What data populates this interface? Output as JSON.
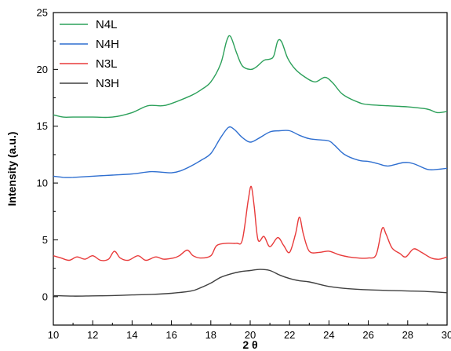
{
  "chart_data": {
    "type": "line",
    "title": "",
    "xlabel": "2 θ",
    "ylabel": "Intensity (a.u.)",
    "xlim": [
      10,
      30
    ],
    "ylim": [
      -2.5,
      25
    ],
    "x_ticks": [
      10,
      12,
      14,
      16,
      18,
      20,
      22,
      24,
      26,
      28,
      30
    ],
    "y_ticks": [
      0,
      5,
      10,
      15,
      20,
      25
    ],
    "grid": false,
    "legend_position": "top-left",
    "series": [
      {
        "name": "N4L",
        "color": "#2ca05a",
        "points": [
          [
            10,
            16.0
          ],
          [
            10.5,
            15.8
          ],
          [
            11,
            15.8
          ],
          [
            12,
            15.8
          ],
          [
            13,
            15.8
          ],
          [
            14,
            16.2
          ],
          [
            14.8,
            16.8
          ],
          [
            15.5,
            16.8
          ],
          [
            16,
            17.0
          ],
          [
            17,
            17.7
          ],
          [
            17.5,
            18.2
          ],
          [
            18,
            18.9
          ],
          [
            18.5,
            20.5
          ],
          [
            18.8,
            22.5
          ],
          [
            19,
            22.9
          ],
          [
            19.3,
            21.5
          ],
          [
            19.6,
            20.3
          ],
          [
            20,
            20.0
          ],
          [
            20.3,
            20.2
          ],
          [
            20.7,
            20.8
          ],
          [
            21,
            20.9
          ],
          [
            21.2,
            21.2
          ],
          [
            21.4,
            22.5
          ],
          [
            21.6,
            22.4
          ],
          [
            21.9,
            21.0
          ],
          [
            22.3,
            20.0
          ],
          [
            22.8,
            19.3
          ],
          [
            23.3,
            18.9
          ],
          [
            23.8,
            19.3
          ],
          [
            24.2,
            18.8
          ],
          [
            24.7,
            17.8
          ],
          [
            25.5,
            17.1
          ],
          [
            26,
            16.9
          ],
          [
            27,
            16.8
          ],
          [
            28,
            16.7
          ],
          [
            29,
            16.5
          ],
          [
            29.5,
            16.2
          ],
          [
            30,
            16.3
          ]
        ]
      },
      {
        "name": "N4H",
        "color": "#2f6fd0",
        "points": [
          [
            10,
            10.6
          ],
          [
            10.5,
            10.5
          ],
          [
            11,
            10.5
          ],
          [
            12,
            10.6
          ],
          [
            13,
            10.7
          ],
          [
            14,
            10.8
          ],
          [
            15,
            11.0
          ],
          [
            16,
            10.9
          ],
          [
            16.5,
            11.1
          ],
          [
            17,
            11.5
          ],
          [
            17.5,
            12.0
          ],
          [
            18,
            12.6
          ],
          [
            18.5,
            14.0
          ],
          [
            18.9,
            14.9
          ],
          [
            19.2,
            14.7
          ],
          [
            19.6,
            14.0
          ],
          [
            20,
            13.6
          ],
          [
            20.4,
            13.9
          ],
          [
            21,
            14.5
          ],
          [
            21.5,
            14.6
          ],
          [
            22,
            14.6
          ],
          [
            22.5,
            14.2
          ],
          [
            23,
            13.9
          ],
          [
            23.5,
            13.8
          ],
          [
            24,
            13.7
          ],
          [
            24.3,
            13.3
          ],
          [
            24.8,
            12.5
          ],
          [
            25.5,
            12.0
          ],
          [
            26,
            11.9
          ],
          [
            26.5,
            11.7
          ],
          [
            27,
            11.5
          ],
          [
            27.8,
            11.8
          ],
          [
            28.3,
            11.7
          ],
          [
            29,
            11.2
          ],
          [
            29.5,
            11.2
          ],
          [
            30,
            11.3
          ]
        ]
      },
      {
        "name": "N3L",
        "color": "#e83a3a",
        "points": [
          [
            10,
            3.6
          ],
          [
            10.4,
            3.4
          ],
          [
            10.8,
            3.2
          ],
          [
            11.2,
            3.5
          ],
          [
            11.6,
            3.3
          ],
          [
            12,
            3.6
          ],
          [
            12.4,
            3.2
          ],
          [
            12.8,
            3.3
          ],
          [
            13.1,
            4.0
          ],
          [
            13.4,
            3.4
          ],
          [
            13.8,
            3.2
          ],
          [
            14.3,
            3.6
          ],
          [
            14.7,
            3.2
          ],
          [
            15.2,
            3.5
          ],
          [
            15.6,
            3.3
          ],
          [
            16.1,
            3.4
          ],
          [
            16.4,
            3.6
          ],
          [
            16.8,
            4.1
          ],
          [
            17.1,
            3.6
          ],
          [
            17.5,
            3.4
          ],
          [
            18,
            3.6
          ],
          [
            18.3,
            4.5
          ],
          [
            18.8,
            4.7
          ],
          [
            19.3,
            4.7
          ],
          [
            19.6,
            5.0
          ],
          [
            19.9,
            8.5
          ],
          [
            20.05,
            9.7
          ],
          [
            20.2,
            8.0
          ],
          [
            20.4,
            5.0
          ],
          [
            20.7,
            5.3
          ],
          [
            21,
            4.4
          ],
          [
            21.4,
            5.2
          ],
          [
            21.7,
            4.5
          ],
          [
            22,
            3.9
          ],
          [
            22.3,
            5.5
          ],
          [
            22.5,
            7.0
          ],
          [
            22.7,
            5.5
          ],
          [
            23,
            4.0
          ],
          [
            23.5,
            3.9
          ],
          [
            24,
            4.0
          ],
          [
            24.5,
            3.7
          ],
          [
            25,
            3.5
          ],
          [
            25.5,
            3.4
          ],
          [
            26,
            3.4
          ],
          [
            26.4,
            3.7
          ],
          [
            26.7,
            6.0
          ],
          [
            26.9,
            5.5
          ],
          [
            27.2,
            4.3
          ],
          [
            27.6,
            3.8
          ],
          [
            27.9,
            3.5
          ],
          [
            28.3,
            4.2
          ],
          [
            28.7,
            3.9
          ],
          [
            29.2,
            3.4
          ],
          [
            29.6,
            3.3
          ],
          [
            30,
            3.5
          ]
        ]
      },
      {
        "name": "N3H",
        "color": "#404040",
        "points": [
          [
            10,
            0.1
          ],
          [
            11,
            0.05
          ],
          [
            12,
            0.07
          ],
          [
            13,
            0.1
          ],
          [
            14,
            0.15
          ],
          [
            15,
            0.2
          ],
          [
            16,
            0.3
          ],
          [
            17,
            0.5
          ],
          [
            17.5,
            0.8
          ],
          [
            18,
            1.2
          ],
          [
            18.5,
            1.7
          ],
          [
            19,
            2.0
          ],
          [
            19.5,
            2.2
          ],
          [
            20,
            2.3
          ],
          [
            20.5,
            2.4
          ],
          [
            21,
            2.3
          ],
          [
            21.5,
            1.9
          ],
          [
            22,
            1.6
          ],
          [
            22.5,
            1.4
          ],
          [
            23,
            1.3
          ],
          [
            24,
            0.9
          ],
          [
            25,
            0.7
          ],
          [
            26,
            0.6
          ],
          [
            27,
            0.55
          ],
          [
            28,
            0.5
          ],
          [
            29,
            0.45
          ],
          [
            30,
            0.35
          ]
        ]
      }
    ]
  }
}
